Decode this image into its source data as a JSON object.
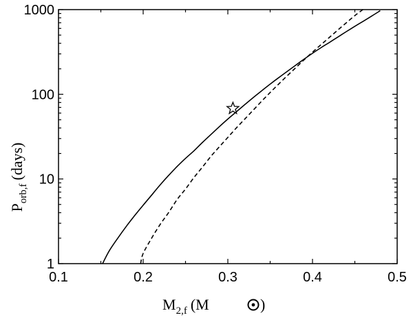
{
  "chart_data": {
    "type": "line",
    "xlabel_main": "M",
    "xlabel_sub": "2,f",
    "xlabel_unit_open": "(M",
    "xlabel_unit_close": ")",
    "ylabel_main": "P",
    "ylabel_sub": "orb,f",
    "ylabel_unit": "(days)",
    "xlim": [
      0.1,
      0.5
    ],
    "ylim": [
      1,
      1000
    ],
    "yscale": "log",
    "grid": false,
    "x_ticks": [
      0.1,
      0.2,
      0.3,
      0.4,
      0.5
    ],
    "x_tick_labels": [
      "0.1",
      "0.2",
      "0.3",
      "0.4",
      "0.5"
    ],
    "y_ticks": [
      1,
      10,
      100,
      1000
    ],
    "y_tick_labels": [
      "1",
      "10",
      "100",
      "1000"
    ],
    "series": [
      {
        "style": "solid",
        "x": [
          0.152,
          0.16,
          0.17,
          0.18,
          0.19,
          0.2,
          0.21,
          0.22,
          0.23,
          0.24,
          0.25,
          0.26,
          0.27,
          0.28,
          0.29,
          0.3,
          0.31,
          0.32,
          0.33,
          0.34,
          0.35,
          0.36,
          0.37,
          0.38,
          0.39,
          0.4,
          0.41,
          0.42,
          0.43,
          0.44,
          0.45,
          0.46,
          0.47,
          0.48
        ],
        "y": [
          1.0,
          1.42,
          2.0,
          2.75,
          3.7,
          4.9,
          6.45,
          8.5,
          11.0,
          14.0,
          17.5,
          21.5,
          27,
          33.5,
          41.5,
          51,
          62,
          75.5,
          91.5,
          110,
          132,
          157,
          186,
          220,
          260,
          305,
          355,
          410,
          475,
          550,
          635,
          730,
          840,
          970
        ]
      },
      {
        "style": "dashed",
        "x": [
          0.197,
          0.2,
          0.21,
          0.22,
          0.23,
          0.24,
          0.25,
          0.26,
          0.27,
          0.28,
          0.29,
          0.3,
          0.31,
          0.32,
          0.33,
          0.34,
          0.35,
          0.36,
          0.37,
          0.38,
          0.39,
          0.4,
          0.41,
          0.42,
          0.43,
          0.44,
          0.45,
          0.46
        ],
        "y": [
          1.0,
          1.32,
          2.0,
          2.9,
          4.0,
          5.7,
          7.6,
          10.4,
          13.8,
          18.5,
          24,
          31,
          40,
          51,
          65,
          83,
          105,
          132,
          165,
          205,
          255,
          315,
          385,
          470,
          575,
          700,
          850,
          1010
        ]
      }
    ],
    "markers": [
      {
        "shape": "star",
        "x": 0.306,
        "y": 68
      }
    ]
  }
}
